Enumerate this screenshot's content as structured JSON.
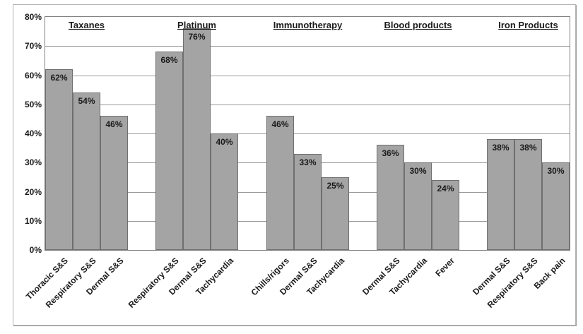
{
  "chart_data": {
    "type": "bar",
    "title": "",
    "xlabel": "",
    "ylabel": "",
    "ylim": [
      0,
      80
    ],
    "ytick_step": 10,
    "ytick_labels": [
      "0%",
      "10%",
      "20%",
      "30%",
      "40%",
      "50%",
      "60%",
      "70%",
      "80%"
    ],
    "grid": true,
    "legend_position": "none",
    "groups": [
      {
        "label": "Taxanes",
        "categories": [
          "Thoracic S&S",
          "Respiratory S&S",
          "Dermal S&S"
        ],
        "values": [
          62,
          54,
          46
        ],
        "value_labels": [
          "62%",
          "54%",
          "46%"
        ]
      },
      {
        "label": "Platinum",
        "categories": [
          "Respiratory S&S",
          "Dermal S&S",
          "Tachycardia"
        ],
        "values": [
          68,
          76,
          40
        ],
        "value_labels": [
          "68%",
          "76%",
          "40%"
        ]
      },
      {
        "label": "Immunotherapy",
        "categories": [
          "Chills/rigors",
          "Dermal S&S",
          "Tachycardia"
        ],
        "values": [
          46,
          33,
          25
        ],
        "value_labels": [
          "46%",
          "33%",
          "25%"
        ]
      },
      {
        "label": "Blood products",
        "categories": [
          "Dermal S&S",
          "Tachycardia",
          "Fever"
        ],
        "values": [
          36,
          30,
          24
        ],
        "value_labels": [
          "36%",
          "30%",
          "24%"
        ]
      },
      {
        "label": "Iron Products",
        "categories": [
          "Dermal S&S",
          "Respiratory S&S",
          "Back pain"
        ],
        "values": [
          38,
          38,
          30
        ],
        "value_labels": [
          "38%",
          "38%",
          "30%"
        ]
      }
    ]
  },
  "colors": {
    "background": "#ffffff",
    "figure_border": "#b3b3b3",
    "plot_border": "#7f7f7f",
    "gridline": "#999999",
    "bar_fill": "#a4a4a4",
    "bar_border": "#6f6f6f",
    "text": "#1a1a1a"
  }
}
